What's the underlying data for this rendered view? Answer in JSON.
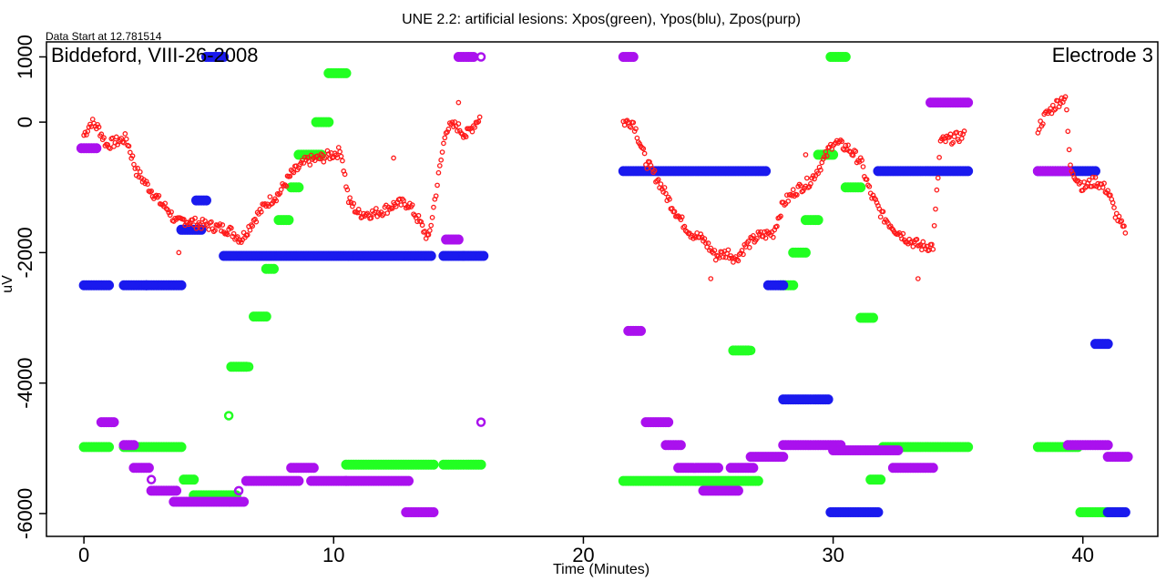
{
  "chart_data": {
    "type": "scatter",
    "title": "UNE 2.2: artificial lesions: Xpos(green), Ypos(blu), Zpos(purp)",
    "data_start_note": "Data Start at 12.781514",
    "location_label": "Biddeford, VIII-26-2008",
    "electrode_label": "Electrode 3",
    "xlabel": "Time (Minutes)",
    "ylabel": "uV",
    "xlim": [
      -1.5,
      43
    ],
    "ylim": [
      -6350,
      1230
    ],
    "x_ticks": [
      0,
      10,
      20,
      30,
      40
    ],
    "y_ticks": [
      1000,
      0,
      -2000,
      -4000,
      -6000
    ],
    "grid": false,
    "colors": {
      "red": "#ff1a1a",
      "green": "#22ff22",
      "blue": "#1a1aee",
      "purple": "#aa11ee"
    },
    "series": [
      {
        "color": "green",
        "segments": [
          {
            "x0": 0.0,
            "x1": 1.0,
            "y": -4980
          },
          {
            "x0": 1.6,
            "x1": 3.9,
            "y": -4980
          },
          {
            "x0": 4.0,
            "x1": 4.4,
            "y": -5480
          },
          {
            "x0": 4.4,
            "x1": 6.1,
            "y": -5720
          },
          {
            "x0": 5.9,
            "x1": 6.5,
            "y": -3750
          },
          {
            "x0": 6.8,
            "x1": 7.3,
            "y": -2980
          },
          {
            "x0": 7.3,
            "x1": 7.6,
            "y": -2250
          },
          {
            "x0": 7.8,
            "x1": 8.2,
            "y": -1500
          },
          {
            "x0": 8.3,
            "x1": 8.6,
            "y": -1000
          },
          {
            "x0": 8.6,
            "x1": 9.5,
            "y": -500
          },
          {
            "x0": 9.3,
            "x1": 9.8,
            "y": 0
          },
          {
            "x0": 9.8,
            "x1": 10.5,
            "y": 750
          },
          {
            "x0": 10.5,
            "x1": 14.0,
            "y": -5250
          },
          {
            "x0": 14.4,
            "x1": 15.1,
            "y": -5250
          },
          {
            "x0": 15.2,
            "x1": 15.9,
            "y": -5250
          },
          {
            "x0": 21.6,
            "x1": 27.0,
            "y": -5500
          },
          {
            "x0": 26.0,
            "x1": 26.6,
            "y": -3500
          },
          {
            "x0": 27.9,
            "x1": 28.4,
            "y": -2500
          },
          {
            "x0": 28.4,
            "x1": 28.9,
            "y": -2000
          },
          {
            "x0": 28.9,
            "x1": 29.4,
            "y": -1500
          },
          {
            "x0": 29.4,
            "x1": 30.0,
            "y": -500
          },
          {
            "x0": 29.9,
            "x1": 30.5,
            "y": 1000
          },
          {
            "x0": 30.5,
            "x1": 31.1,
            "y": -1000
          },
          {
            "x0": 31.1,
            "x1": 31.6,
            "y": -3000
          },
          {
            "x0": 31.5,
            "x1": 31.9,
            "y": -5480
          },
          {
            "x0": 32.0,
            "x1": 33.8,
            "y": -4980
          },
          {
            "x0": 33.9,
            "x1": 35.4,
            "y": -4980
          },
          {
            "x0": 38.2,
            "x1": 39.8,
            "y": -4980
          },
          {
            "x0": 39.9,
            "x1": 41.6,
            "y": -5980
          }
        ],
        "points": [
          {
            "x": 5.8,
            "y": -4500
          },
          {
            "x": 6.6,
            "y": -3750
          },
          {
            "x": 26.7,
            "y": -3500
          },
          {
            "x": 15.9,
            "y": -5250
          }
        ]
      },
      {
        "color": "blue",
        "segments": [
          {
            "x0": 0.0,
            "x1": 1.0,
            "y": -2500
          },
          {
            "x0": 1.6,
            "x1": 2.5,
            "y": -2500
          },
          {
            "x0": 2.5,
            "x1": 3.9,
            "y": -2500
          },
          {
            "x0": 3.9,
            "x1": 4.7,
            "y": -1650
          },
          {
            "x0": 4.5,
            "x1": 4.9,
            "y": -1200
          },
          {
            "x0": 4.9,
            "x1": 5.6,
            "y": 1000
          },
          {
            "x0": 5.6,
            "x1": 13.9,
            "y": -2050
          },
          {
            "x0": 14.4,
            "x1": 15.2,
            "y": -2050
          },
          {
            "x0": 15.2,
            "x1": 16.0,
            "y": -2050
          },
          {
            "x0": 21.6,
            "x1": 27.3,
            "y": -750
          },
          {
            "x0": 27.4,
            "x1": 28.0,
            "y": -2500
          },
          {
            "x0": 28.0,
            "x1": 29.8,
            "y": -4250
          },
          {
            "x0": 29.9,
            "x1": 31.8,
            "y": -5980
          },
          {
            "x0": 31.8,
            "x1": 35.4,
            "y": -750
          },
          {
            "x0": 38.2,
            "x1": 40.5,
            "y": -750
          },
          {
            "x0": 40.5,
            "x1": 41.0,
            "y": -3400
          },
          {
            "x0": 41.0,
            "x1": 41.7,
            "y": -5980
          }
        ],
        "points": [
          {
            "x": 15.9,
            "y": -2050
          }
        ]
      },
      {
        "color": "purple",
        "segments": [
          {
            "x0": -0.1,
            "x1": 0.5,
            "y": -400
          },
          {
            "x0": 0.7,
            "x1": 1.2,
            "y": -4600
          },
          {
            "x0": 1.6,
            "x1": 2.0,
            "y": -4950
          },
          {
            "x0": 2.0,
            "x1": 2.6,
            "y": -5300
          },
          {
            "x0": 2.7,
            "x1": 3.7,
            "y": -5650
          },
          {
            "x0": 3.6,
            "x1": 6.4,
            "y": -5820
          },
          {
            "x0": 6.5,
            "x1": 8.6,
            "y": -5500
          },
          {
            "x0": 8.3,
            "x1": 9.2,
            "y": -5300
          },
          {
            "x0": 9.1,
            "x1": 10.5,
            "y": -5500
          },
          {
            "x0": 10.5,
            "x1": 13.0,
            "y": -5500
          },
          {
            "x0": 12.9,
            "x1": 14.0,
            "y": -5980
          },
          {
            "x0": 14.5,
            "x1": 15.0,
            "y": -1800
          },
          {
            "x0": 15.0,
            "x1": 15.6,
            "y": 1000
          },
          {
            "x0": 21.6,
            "x1": 22.0,
            "y": 1000
          },
          {
            "x0": 21.8,
            "x1": 22.3,
            "y": -3200
          },
          {
            "x0": 22.5,
            "x1": 23.4,
            "y": -4600
          },
          {
            "x0": 23.3,
            "x1": 23.9,
            "y": -4950
          },
          {
            "x0": 23.8,
            "x1": 25.4,
            "y": -5300
          },
          {
            "x0": 24.8,
            "x1": 26.2,
            "y": -5650
          },
          {
            "x0": 25.9,
            "x1": 26.8,
            "y": -5300
          },
          {
            "x0": 26.7,
            "x1": 28.0,
            "y": -5130
          },
          {
            "x0": 28.0,
            "x1": 30.3,
            "y": -4950
          },
          {
            "x0": 30.0,
            "x1": 32.6,
            "y": -5030
          },
          {
            "x0": 32.4,
            "x1": 34.0,
            "y": -5300
          },
          {
            "x0": 33.9,
            "x1": 35.4,
            "y": 300
          },
          {
            "x0": 38.2,
            "x1": 39.4,
            "y": -750
          },
          {
            "x0": 39.4,
            "x1": 41.0,
            "y": -4950
          },
          {
            "x0": 41.0,
            "x1": 41.8,
            "y": -5130
          }
        ],
        "points": [
          {
            "x": 2.7,
            "y": -5480
          },
          {
            "x": 6.2,
            "y": -5650
          },
          {
            "x": 15.9,
            "y": 1000
          },
          {
            "x": 15.9,
            "y": -4600
          }
        ]
      },
      {
        "color": "red",
        "trace_anchors": [
          [
            0.0,
            -200
          ],
          [
            0.3,
            0
          ],
          [
            0.6,
            -100
          ],
          [
            0.9,
            -350
          ],
          [
            1.7,
            -250
          ],
          [
            2.1,
            -750
          ],
          [
            2.6,
            -1000
          ],
          [
            3.1,
            -1250
          ],
          [
            3.4,
            -1350
          ],
          [
            3.7,
            -1550
          ],
          [
            4.0,
            -1500
          ],
          [
            4.5,
            -1550
          ],
          [
            5.2,
            -1600
          ],
          [
            5.8,
            -1650
          ],
          [
            6.3,
            -1800
          ],
          [
            6.8,
            -1500
          ],
          [
            7.3,
            -1250
          ],
          [
            7.8,
            -1100
          ],
          [
            8.3,
            -800
          ],
          [
            8.9,
            -600
          ],
          [
            9.5,
            -550
          ],
          [
            10.3,
            -450
          ],
          [
            10.6,
            -1200
          ],
          [
            11.0,
            -1400
          ],
          [
            11.6,
            -1400
          ],
          [
            12.0,
            -1350
          ],
          [
            12.5,
            -1250
          ],
          [
            13.0,
            -1250
          ],
          [
            13.4,
            -1500
          ],
          [
            13.8,
            -1800
          ],
          [
            14.5,
            -100
          ],
          [
            14.9,
            -50
          ],
          [
            15.3,
            -200
          ],
          [
            15.9,
            100
          ],
          [
            21.6,
            0
          ],
          [
            22.0,
            0
          ],
          [
            22.5,
            -600
          ],
          [
            23.0,
            -900
          ],
          [
            23.5,
            -1250
          ],
          [
            23.9,
            -1500
          ],
          [
            24.3,
            -1700
          ],
          [
            24.8,
            -1800
          ],
          [
            25.3,
            -2050
          ],
          [
            25.8,
            -2000
          ],
          [
            26.1,
            -2100
          ],
          [
            26.5,
            -1900
          ],
          [
            27.0,
            -1750
          ],
          [
            27.6,
            -1700
          ],
          [
            28.0,
            -1250
          ],
          [
            28.5,
            -1050
          ],
          [
            29.1,
            -900
          ],
          [
            29.6,
            -600
          ],
          [
            30.0,
            -300
          ],
          [
            30.6,
            -400
          ],
          [
            31.1,
            -600
          ],
          [
            31.5,
            -1100
          ],
          [
            32.0,
            -1450
          ],
          [
            32.5,
            -1650
          ],
          [
            33.0,
            -1800
          ],
          [
            33.5,
            -1900
          ],
          [
            34.0,
            -1900
          ],
          [
            34.3,
            -300
          ],
          [
            34.8,
            -250
          ],
          [
            35.3,
            -200
          ],
          [
            38.2,
            -100
          ],
          [
            38.5,
            100
          ],
          [
            39.0,
            300
          ],
          [
            39.3,
            400
          ],
          [
            39.5,
            -700
          ],
          [
            40.0,
            -1000
          ],
          [
            40.5,
            -900
          ],
          [
            41.0,
            -1050
          ],
          [
            41.3,
            -1400
          ],
          [
            41.7,
            -1700
          ]
        ],
        "outliers": [
          {
            "x": 3.8,
            "y": -2000
          },
          {
            "x": 12.4,
            "y": -550
          },
          {
            "x": 15.0,
            "y": 300
          },
          {
            "x": 25.1,
            "y": -2400
          },
          {
            "x": 33.4,
            "y": -2400
          },
          {
            "x": 28.9,
            "y": -500
          }
        ]
      }
    ]
  }
}
